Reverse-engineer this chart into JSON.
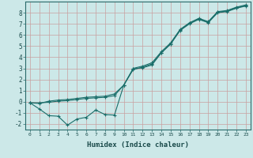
{
  "xlabel": "Humidex (Indice chaleur)",
  "background_color": "#cce8e8",
  "grid_color": "#c8a0a0",
  "line_color": "#1a6e6a",
  "x_min": -0.5,
  "x_max": 23.5,
  "y_min": -2.5,
  "y_max": 9.0,
  "line1_x": [
    0,
    1,
    2,
    3,
    4,
    5,
    6,
    7,
    8,
    9,
    10,
    11,
    12,
    13,
    14,
    15,
    16,
    17,
    18,
    19,
    20,
    21,
    22,
    23
  ],
  "line1_y": [
    -0.1,
    -0.65,
    -1.25,
    -1.3,
    -2.1,
    -1.55,
    -1.4,
    -0.75,
    -1.15,
    -1.2,
    1.5,
    3.0,
    3.2,
    3.5,
    4.5,
    5.3,
    6.5,
    7.1,
    7.5,
    7.2,
    8.1,
    8.2,
    8.5,
    8.7
  ],
  "line2_x": [
    0,
    1,
    2,
    3,
    4,
    5,
    6,
    7,
    8,
    9,
    10,
    11,
    12,
    13,
    14,
    15,
    16,
    17,
    18,
    19,
    20,
    21,
    22,
    23
  ],
  "line2_y": [
    -0.1,
    -0.1,
    -0.05,
    0.05,
    0.1,
    0.2,
    0.3,
    0.35,
    0.4,
    0.55,
    1.5,
    2.95,
    3.05,
    3.3,
    4.4,
    5.2,
    6.4,
    7.0,
    7.4,
    7.1,
    8.0,
    8.1,
    8.4,
    8.6
  ],
  "line3_x": [
    0,
    1,
    2,
    3,
    4,
    5,
    6,
    7,
    8,
    9,
    10,
    11,
    12,
    13,
    14,
    15,
    16,
    17,
    18,
    19,
    20,
    21,
    22,
    23
  ],
  "line3_y": [
    -0.1,
    -0.15,
    0.05,
    0.15,
    0.2,
    0.3,
    0.4,
    0.45,
    0.5,
    0.7,
    1.5,
    2.9,
    3.1,
    3.4,
    4.4,
    5.2,
    6.45,
    7.05,
    7.45,
    7.15,
    8.05,
    8.15,
    8.45,
    8.65
  ],
  "yticks": [
    -2,
    -1,
    0,
    1,
    2,
    3,
    4,
    5,
    6,
    7,
    8
  ],
  "xticks": [
    0,
    1,
    2,
    3,
    4,
    5,
    6,
    7,
    8,
    9,
    10,
    11,
    12,
    13,
    14,
    15,
    16,
    17,
    18,
    19,
    20,
    21,
    22,
    23
  ]
}
